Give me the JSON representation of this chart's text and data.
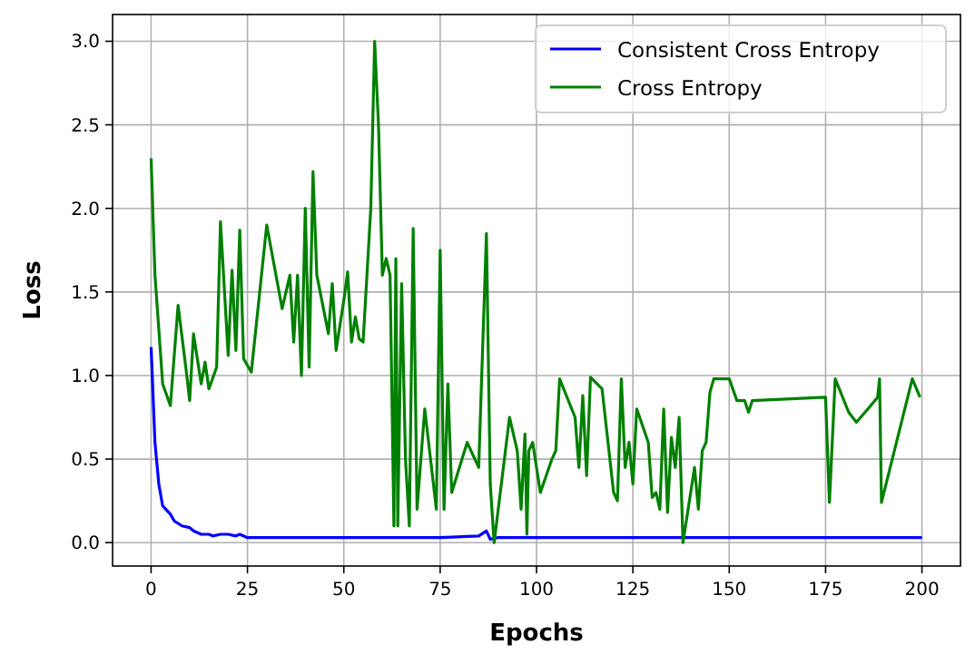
{
  "chart_data": {
    "type": "line",
    "xlabel": "Epochs",
    "ylabel": "Loss",
    "xlim": [
      -10,
      210
    ],
    "xticks": [
      0,
      25,
      50,
      75,
      100,
      125,
      150,
      175,
      200
    ],
    "ylim": [
      -0.14,
      3.16
    ],
    "yticks": [
      {
        "value": 0,
        "label": "0.0"
      },
      {
        "value": 0.5,
        "label": "0.5"
      },
      {
        "value": 1,
        "label": "1.0"
      },
      {
        "value": 1.5,
        "label": "1.5"
      },
      {
        "value": 2,
        "label": "2.0"
      },
      {
        "value": 2.5,
        "label": "2.5"
      },
      {
        "value": 3,
        "label": "3.0"
      }
    ],
    "grid": true,
    "legend": "top right",
    "line_style": "solid",
    "series": [
      {
        "name": "Consistent Cross Entropy",
        "color": "#0000ff",
        "x": [
          0,
          1,
          2,
          3,
          5,
          6,
          8,
          10,
          11,
          13,
          15,
          16,
          18,
          20,
          22,
          23,
          25,
          30,
          40,
          45,
          50,
          60,
          70,
          75,
          85,
          87,
          88,
          90,
          100,
          120,
          140,
          160,
          180,
          200
        ],
        "values": [
          1.17,
          0.6,
          0.35,
          0.22,
          0.17,
          0.13,
          0.1,
          0.09,
          0.07,
          0.05,
          0.05,
          0.04,
          0.05,
          0.05,
          0.04,
          0.05,
          0.03,
          0.03,
          0.03,
          0.03,
          0.03,
          0.03,
          0.03,
          0.03,
          0.04,
          0.07,
          0.02,
          0.03,
          0.03,
          0.03,
          0.03,
          0.03,
          0.03,
          0.03
        ]
      },
      {
        "name": "Cross Entropy",
        "color": "#008000",
        "x": [
          0,
          1,
          3,
          5,
          7,
          9,
          10,
          11,
          13,
          14,
          15,
          17,
          18,
          20,
          21,
          22,
          23,
          24,
          26,
          30,
          34,
          36,
          37,
          38,
          39,
          40,
          41,
          42,
          43,
          46,
          47,
          48,
          50,
          51,
          52,
          53,
          54,
          55,
          57,
          58,
          59,
          60,
          61,
          62,
          63,
          63.5,
          64,
          65,
          66,
          67,
          68,
          69,
          71,
          74,
          75,
          76,
          77,
          78,
          82,
          85,
          87,
          88,
          89,
          93,
          95,
          96,
          97,
          97.5,
          98,
          99,
          101,
          104,
          105,
          106,
          110,
          111,
          112,
          113,
          114,
          117,
          120,
          121,
          122,
          123,
          124,
          125,
          126,
          129,
          130,
          131,
          132,
          133,
          134,
          135,
          136,
          137,
          138,
          141,
          142,
          143,
          144,
          145,
          146,
          150,
          152,
          154,
          155,
          156,
          175,
          176,
          177.5,
          181,
          183,
          186,
          188.5,
          189,
          189.5,
          197.5,
          199.5
        ],
        "values": [
          2.3,
          1.6,
          0.95,
          0.82,
          1.42,
          1.05,
          0.85,
          1.25,
          0.95,
          1.08,
          0.92,
          1.05,
          1.92,
          1.12,
          1.63,
          1.15,
          1.87,
          1.1,
          1.02,
          1.9,
          1.4,
          1.6,
          1.2,
          1.6,
          1.0,
          2.0,
          1.05,
          2.22,
          1.6,
          1.25,
          1.55,
          1.15,
          1.45,
          1.62,
          1.2,
          1.35,
          1.22,
          1.2,
          2.0,
          3.0,
          2.5,
          1.6,
          1.7,
          1.6,
          0.1,
          1.7,
          0.1,
          1.55,
          0.5,
          0.1,
          1.88,
          0.2,
          0.8,
          0.2,
          1.75,
          0.2,
          0.95,
          0.3,
          0.6,
          0.45,
          1.85,
          0.35,
          0.0,
          0.75,
          0.55,
          0.2,
          0.65,
          0.05,
          0.55,
          0.6,
          0.3,
          0.5,
          0.55,
          0.98,
          0.75,
          0.45,
          0.88,
          0.4,
          0.99,
          0.92,
          0.3,
          0.25,
          0.98,
          0.45,
          0.6,
          0.35,
          0.8,
          0.6,
          0.27,
          0.3,
          0.2,
          0.8,
          0.18,
          0.63,
          0.45,
          0.75,
          0.0,
          0.45,
          0.2,
          0.55,
          0.6,
          0.9,
          0.98,
          0.98,
          0.85,
          0.85,
          0.78,
          0.85,
          0.87,
          0.24,
          0.98,
          0.78,
          0.72,
          0.8,
          0.87,
          0.98,
          0.24,
          0.98,
          0.87
        ]
      }
    ]
  }
}
